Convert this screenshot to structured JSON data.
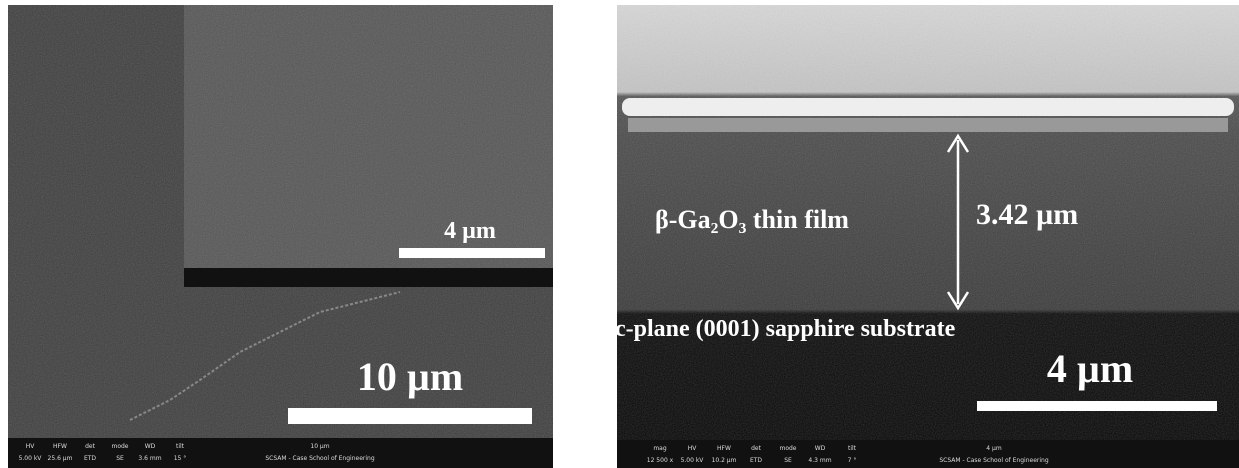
{
  "left_panel": {
    "scale_label": "10 µm",
    "inset_scale_label": "4 µm",
    "databar": {
      "headers": [
        "HV",
        "HFW",
        "det",
        "mode",
        "WD",
        "tilt"
      ],
      "values": [
        "5.00 kV",
        "25.6 µm",
        "ETD",
        "SE",
        "3.6 mm",
        "15 °"
      ],
      "scale": "10 µm",
      "institution": "SCSAM - Case School of Engineering"
    }
  },
  "right_panel": {
    "film_label": "β-Ga₂O₃ thin film",
    "thickness_label": "3.42 µm",
    "substrate_label": "c-plane (0001) sapphire substrate",
    "scale_label": "4 µm",
    "databar": {
      "headers": [
        "mag",
        "HV",
        "HFW",
        "det",
        "mode",
        "WD",
        "tilt"
      ],
      "values": [
        "12 500 x",
        "5.00 kV",
        "10.2 µm",
        "ETD",
        "SE",
        "4.3 mm",
        "7 °"
      ],
      "scale": "4 µm",
      "institution": "SCSAM - Case School of Engineering"
    }
  }
}
